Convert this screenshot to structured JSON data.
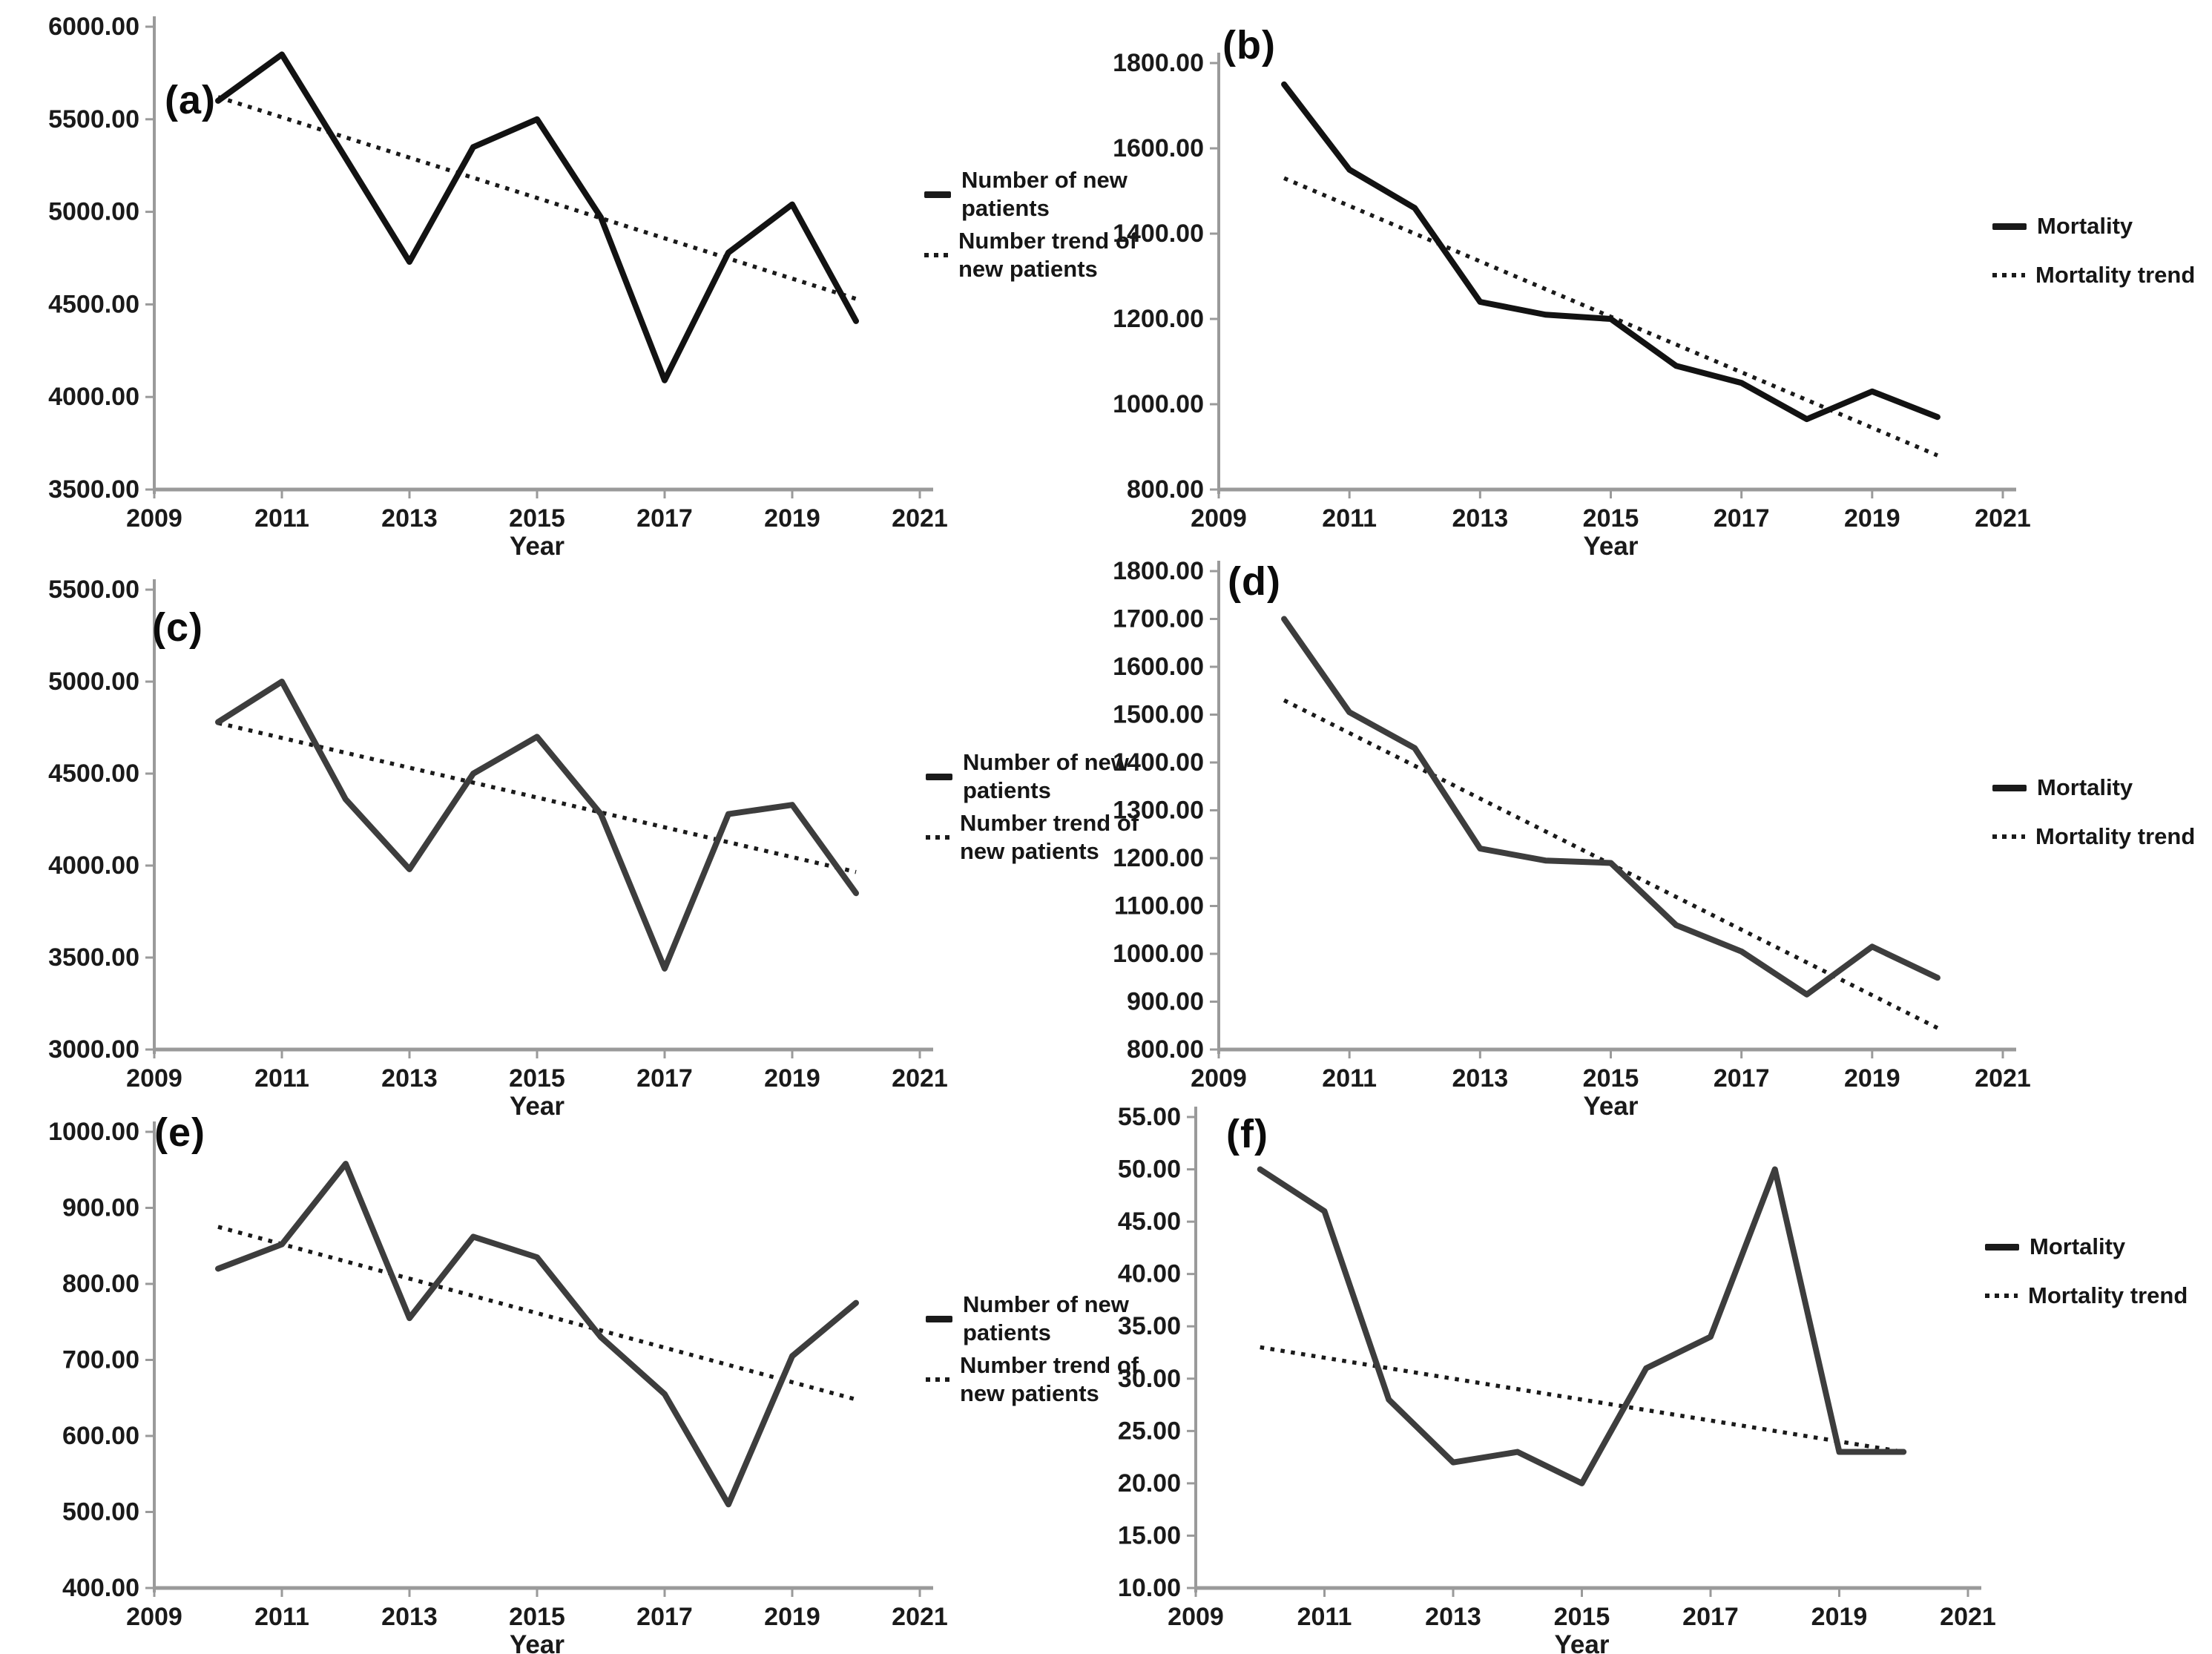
{
  "figure": {
    "background": "#ffffff",
    "text_color": "#1a1a1a",
    "axis_color": "#9a9a9a"
  },
  "axis": {
    "xlabel": "Year",
    "x_range": [
      2009,
      2021
    ],
    "x_ticks": [
      "2009",
      "2011",
      "2013",
      "2015",
      "2017",
      "2019",
      "2021"
    ],
    "years": [
      2010,
      2011,
      2012,
      2013,
      2014,
      2015,
      2016,
      2017,
      2018,
      2019,
      2020
    ]
  },
  "chart_data": [
    {
      "panel_label": "(a)",
      "type": "line",
      "ylim": [
        3500,
        6000
      ],
      "ytick_step": 500,
      "line_color": "#121212",
      "trend_color": "#1a1a1a",
      "legend_position": "right",
      "grid": false,
      "series": [
        {
          "name": "Number of new patients",
          "style": "solid",
          "values": [
            5600,
            5850,
            5290,
            4730,
            5350,
            5500,
            4970,
            4090,
            4780,
            5040,
            4410
          ]
        },
        {
          "name": "Number trend of new patients",
          "style": "dotted",
          "trend_endpoints": [
            5620,
            4530
          ]
        }
      ]
    },
    {
      "panel_label": "(b)",
      "type": "line",
      "ylim": [
        800,
        1800
      ],
      "ytick_step": 200,
      "line_color": "#121212",
      "trend_color": "#1a1a1a",
      "legend_position": "right",
      "grid": false,
      "series": [
        {
          "name": "Mortality",
          "style": "solid",
          "values": [
            1750,
            1550,
            1460,
            1240,
            1210,
            1200,
            1090,
            1050,
            965,
            1030,
            970
          ]
        },
        {
          "name": "Mortality trend",
          "style": "dotted",
          "trend_endpoints": [
            1530,
            880
          ]
        }
      ]
    },
    {
      "panel_label": "(c)",
      "type": "line",
      "ylim": [
        3000,
        5500
      ],
      "ytick_step": 500,
      "line_color": "#3d3d3d",
      "trend_color": "#1a1a1a",
      "legend_position": "right",
      "grid": false,
      "series": [
        {
          "name": "Number of new patients",
          "style": "solid",
          "values": [
            4780,
            5000,
            4360,
            3980,
            4500,
            4700,
            4280,
            3440,
            4280,
            4330,
            3850
          ]
        },
        {
          "name": "Number trend of new patients",
          "style": "dotted",
          "trend_endpoints": [
            4775,
            3965
          ]
        }
      ]
    },
    {
      "panel_label": "(d)",
      "type": "line",
      "ylim": [
        800,
        1800
      ],
      "ytick_step": 100,
      "line_color": "#3d3d3d",
      "trend_color": "#1a1a1a",
      "legend_position": "right",
      "grid": false,
      "series": [
        {
          "name": "Mortality",
          "style": "solid",
          "values": [
            1700,
            1505,
            1430,
            1220,
            1195,
            1190,
            1060,
            1005,
            915,
            1015,
            950
          ]
        },
        {
          "name": "Mortality trend",
          "style": "dotted",
          "trend_endpoints": [
            1530,
            845
          ]
        }
      ]
    },
    {
      "panel_label": "(e)",
      "type": "line",
      "ylim": [
        400,
        1000
      ],
      "ytick_step": 100,
      "line_color": "#3d3d3d",
      "trend_color": "#1a1a1a",
      "legend_position": "right",
      "grid": false,
      "series": [
        {
          "name": "Number of new patients",
          "style": "solid",
          "values": [
            820,
            852,
            958,
            755,
            862,
            835,
            730,
            655,
            510,
            705,
            775
          ]
        },
        {
          "name": "Number trend of new patients",
          "style": "dotted",
          "trend_endpoints": [
            875,
            648
          ]
        }
      ]
    },
    {
      "panel_label": "(f)",
      "type": "line",
      "ylim": [
        10,
        55
      ],
      "ytick_step": 5,
      "line_color": "#3d3d3d",
      "trend_color": "#1a1a1a",
      "legend_position": "right",
      "grid": false,
      "series": [
        {
          "name": "Mortality",
          "style": "solid",
          "values": [
            50,
            46,
            28,
            22,
            23,
            20,
            31,
            34,
            50,
            23,
            23
          ]
        },
        {
          "name": "Mortality trend",
          "style": "dotted",
          "trend_endpoints": [
            33,
            23
          ]
        }
      ]
    }
  ]
}
